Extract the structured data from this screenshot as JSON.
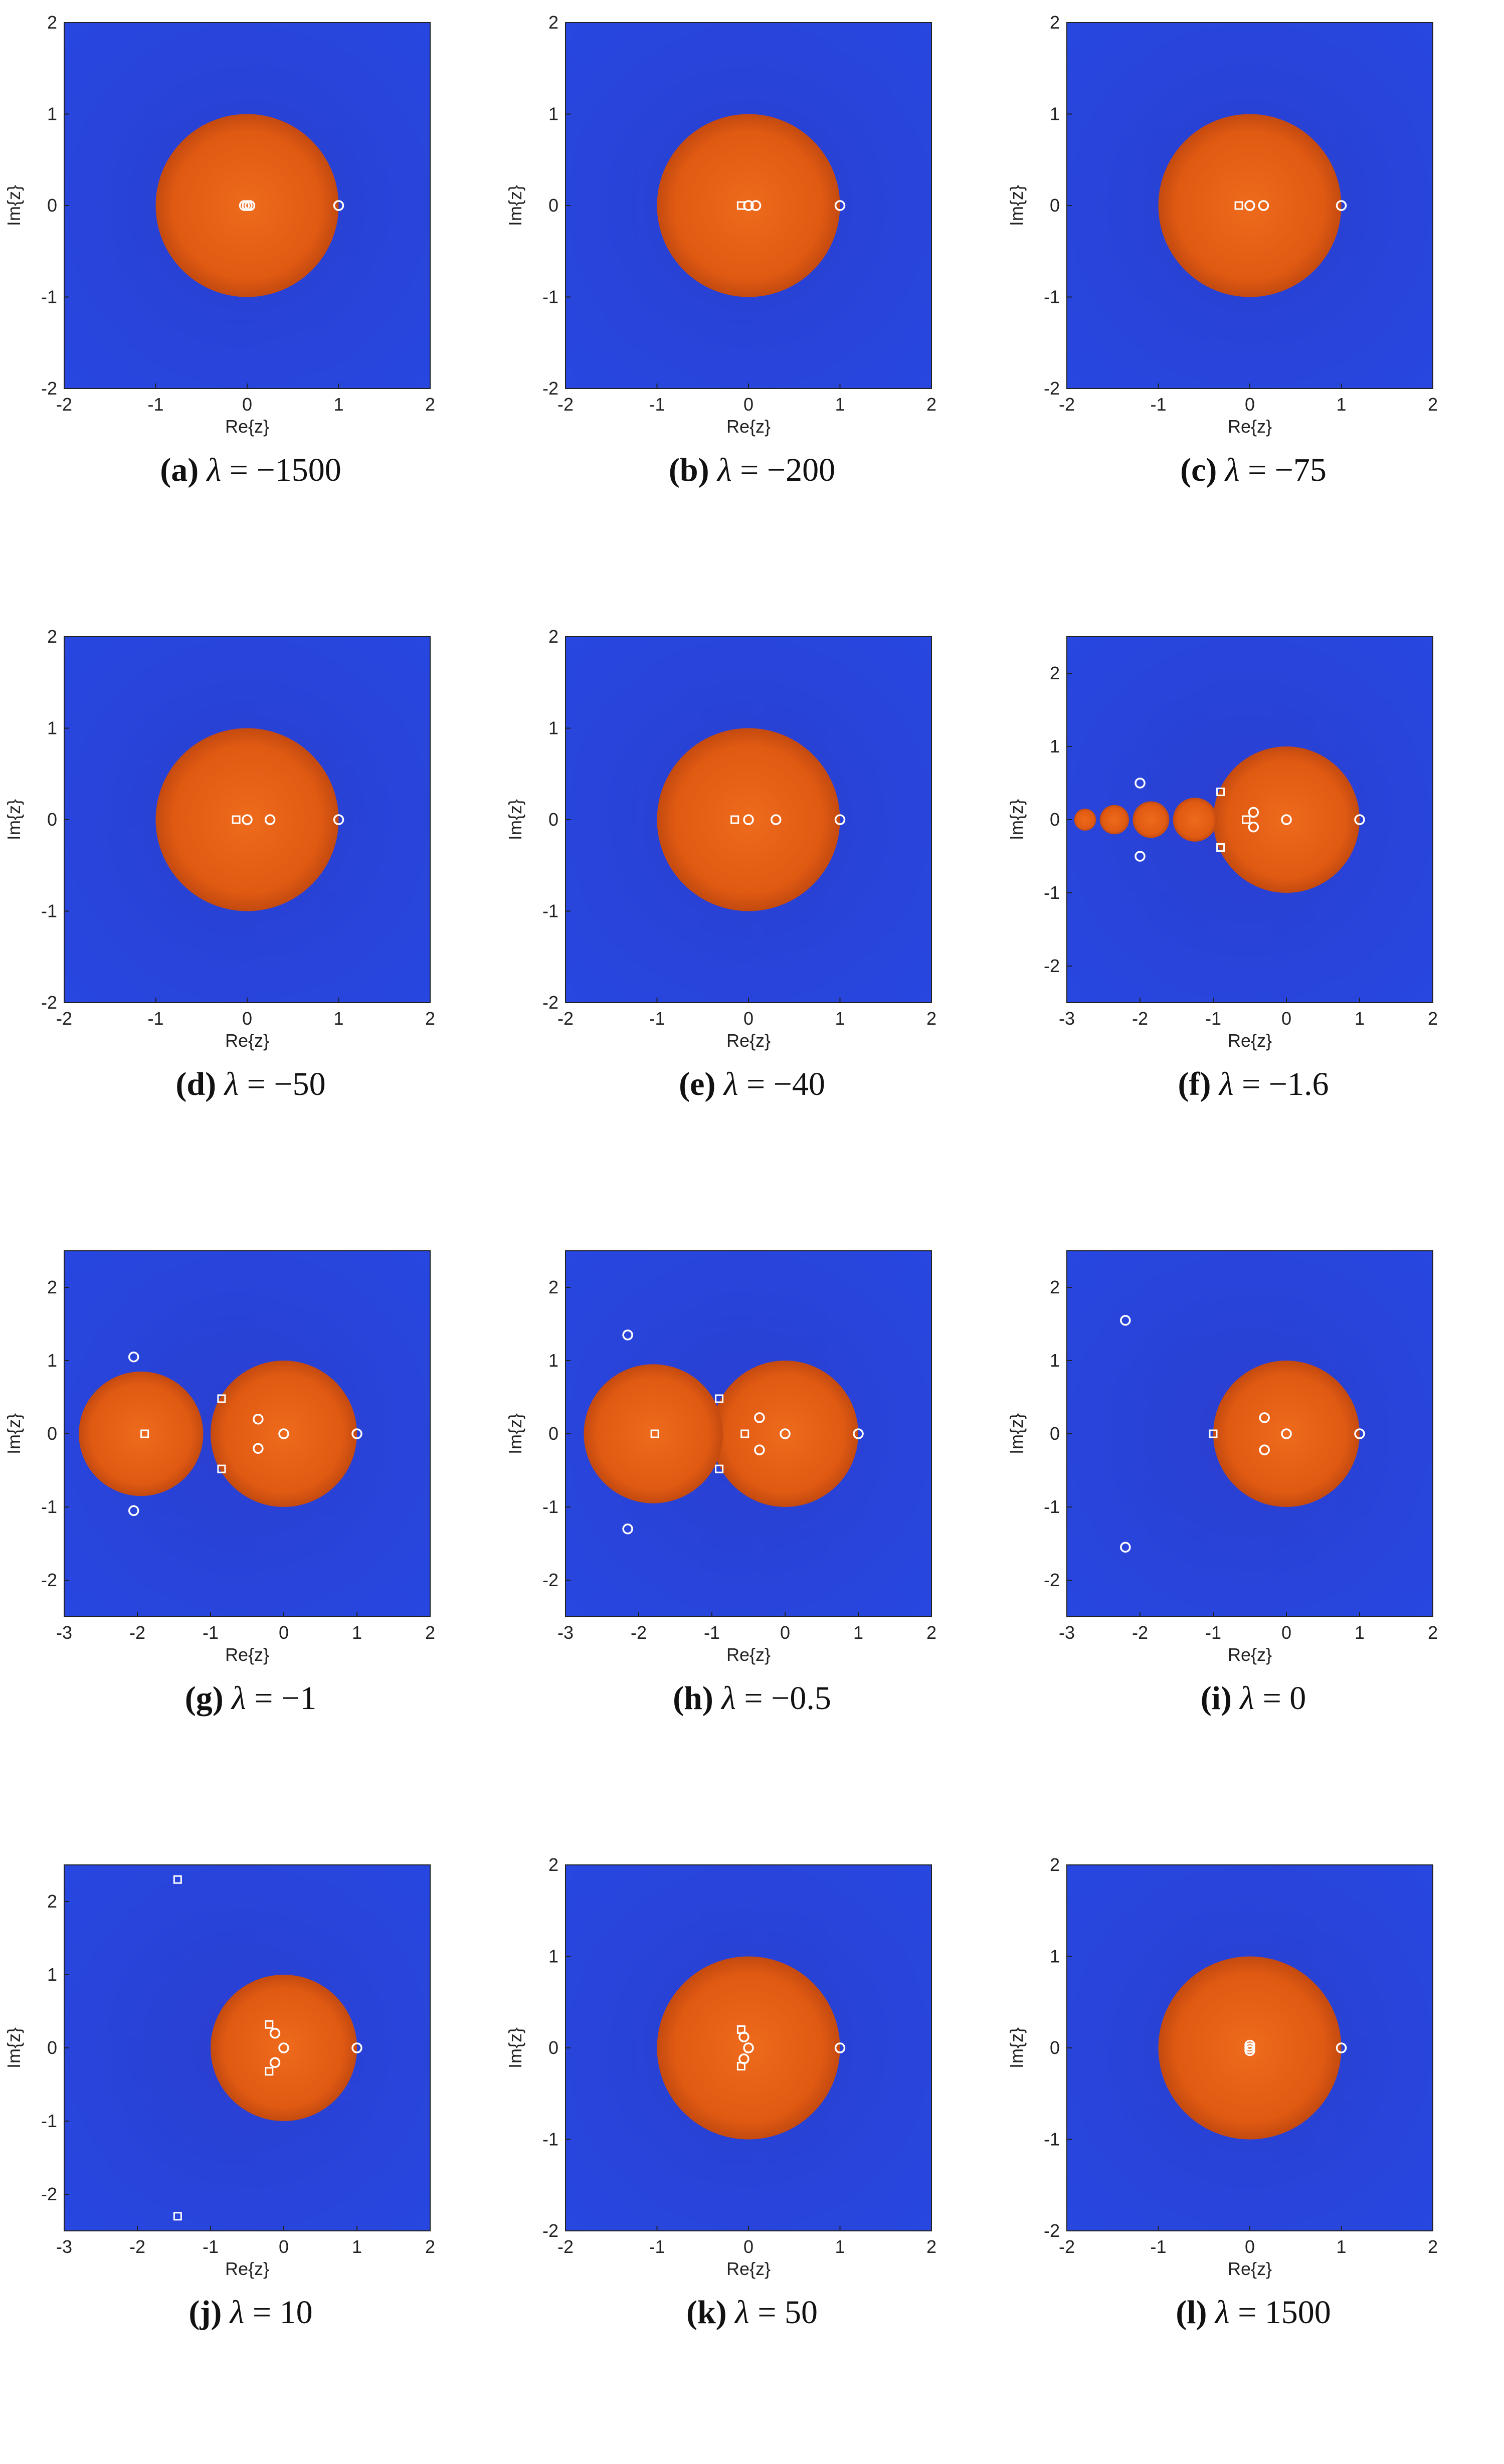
{
  "colors": {
    "basin_outside": "#2747e0",
    "basin_inside": "#e05a12",
    "axis": "#222222",
    "marker": "#ffffff"
  },
  "chart_data": [
    {
      "type": "heatmap",
      "panel": "a",
      "lambda": "−1500",
      "xlabel": "Re{z}",
      "ylabel": "Im{z}",
      "xlim": [
        -2,
        2
      ],
      "ylim": [
        -2,
        2
      ],
      "xticks": [
        "-2",
        "-1",
        "0",
        "1",
        "2"
      ],
      "yticks": [
        "-2",
        "-1",
        "0",
        "1",
        "2"
      ],
      "circles": [
        {
          "cx": 0,
          "cy": 0,
          "r": 1
        }
      ],
      "markers": [
        {
          "x": 0,
          "y": 0,
          "shape": "circle"
        },
        {
          "x": -0.03,
          "y": 0,
          "shape": "circle"
        },
        {
          "x": 0.03,
          "y": 0,
          "shape": "circle"
        },
        {
          "x": 1,
          "y": 0,
          "shape": "circle"
        }
      ]
    },
    {
      "type": "heatmap",
      "panel": "b",
      "lambda": "−200",
      "xlabel": "Re{z}",
      "ylabel": "Im{z}",
      "xlim": [
        -2,
        2
      ],
      "ylim": [
        -2,
        2
      ],
      "xticks": [
        "-2",
        "-1",
        "0",
        "1",
        "2"
      ],
      "yticks": [
        "-2",
        "-1",
        "0",
        "1",
        "2"
      ],
      "circles": [
        {
          "cx": 0,
          "cy": 0,
          "r": 1
        }
      ],
      "markers": [
        {
          "x": 0,
          "y": 0,
          "shape": "circle"
        },
        {
          "x": -0.08,
          "y": 0,
          "shape": "square"
        },
        {
          "x": 0.08,
          "y": 0,
          "shape": "circle"
        },
        {
          "x": 1,
          "y": 0,
          "shape": "circle"
        }
      ]
    },
    {
      "type": "heatmap",
      "panel": "c",
      "lambda": "−75",
      "xlabel": "Re{z}",
      "ylabel": "Im{z}",
      "xlim": [
        -2,
        2
      ],
      "ylim": [
        -2,
        2
      ],
      "xticks": [
        "-2",
        "-1",
        "0",
        "1",
        "2"
      ],
      "yticks": [
        "-2",
        "-1",
        "0",
        "1",
        "2"
      ],
      "circles": [
        {
          "cx": 0,
          "cy": 0,
          "r": 1
        }
      ],
      "markers": [
        {
          "x": 0,
          "y": 0,
          "shape": "circle"
        },
        {
          "x": -0.12,
          "y": 0,
          "shape": "square"
        },
        {
          "x": 0.15,
          "y": 0,
          "shape": "circle"
        },
        {
          "x": 1,
          "y": 0,
          "shape": "circle"
        }
      ]
    },
    {
      "type": "heatmap",
      "panel": "d",
      "lambda": "−50",
      "xlabel": "Re{z}",
      "ylabel": "Im{z}",
      "xlim": [
        -2,
        2
      ],
      "ylim": [
        -2,
        2
      ],
      "xticks": [
        "-2",
        "-1",
        "0",
        "1",
        "2"
      ],
      "yticks": [
        "-2",
        "-1",
        "0",
        "1",
        "2"
      ],
      "circles": [
        {
          "cx": 0,
          "cy": 0,
          "r": 1
        }
      ],
      "markers": [
        {
          "x": 0,
          "y": 0,
          "shape": "circle"
        },
        {
          "x": -0.12,
          "y": 0,
          "shape": "square"
        },
        {
          "x": 0.25,
          "y": 0,
          "shape": "circle"
        },
        {
          "x": 1,
          "y": 0,
          "shape": "circle"
        }
      ]
    },
    {
      "type": "heatmap",
      "panel": "e",
      "lambda": "−40",
      "xlabel": "Re{z}",
      "ylabel": "Im{z}",
      "xlim": [
        -2,
        2
      ],
      "ylim": [
        -2,
        2
      ],
      "xticks": [
        "-2",
        "-1",
        "0",
        "1",
        "2"
      ],
      "yticks": [
        "-2",
        "-1",
        "0",
        "1",
        "2"
      ],
      "circles": [
        {
          "cx": 0,
          "cy": 0,
          "r": 1
        }
      ],
      "markers": [
        {
          "x": 0,
          "y": 0,
          "shape": "circle"
        },
        {
          "x": -0.15,
          "y": 0,
          "shape": "square"
        },
        {
          "x": 0.3,
          "y": 0,
          "shape": "circle"
        },
        {
          "x": 1,
          "y": 0,
          "shape": "circle"
        }
      ]
    },
    {
      "type": "heatmap",
      "panel": "f",
      "lambda": "−1.6",
      "xlabel": "Re{z}",
      "ylabel": "Im{z}",
      "xlim": [
        -3,
        2
      ],
      "ylim": [
        -2.5,
        2.5
      ],
      "xticks": [
        "-3",
        "-2",
        "-1",
        "0",
        "1",
        "2"
      ],
      "yticks": [
        "-2",
        "-1",
        "0",
        "1",
        "2"
      ],
      "circles": [
        {
          "cx": 0,
          "cy": 0,
          "r": 1
        },
        {
          "cx": -1.25,
          "cy": 0,
          "r": 0.3
        },
        {
          "cx": -1.85,
          "cy": 0,
          "r": 0.25
        },
        {
          "cx": -2.35,
          "cy": 0,
          "r": 0.2
        },
        {
          "cx": -2.75,
          "cy": 0,
          "r": 0.15
        }
      ],
      "markers": [
        {
          "x": 0,
          "y": 0,
          "shape": "circle"
        },
        {
          "x": 1,
          "y": 0,
          "shape": "circle"
        },
        {
          "x": -0.45,
          "y": 0.1,
          "shape": "circle"
        },
        {
          "x": -0.45,
          "y": -0.1,
          "shape": "circle"
        },
        {
          "x": -2,
          "y": 0.5,
          "shape": "circle"
        },
        {
          "x": -2,
          "y": -0.5,
          "shape": "circle"
        },
        {
          "x": -0.9,
          "y": 0.38,
          "shape": "square"
        },
        {
          "x": -0.9,
          "y": -0.38,
          "shape": "square"
        },
        {
          "x": -0.55,
          "y": 0,
          "shape": "square"
        }
      ]
    },
    {
      "type": "heatmap",
      "panel": "g",
      "lambda": "−1",
      "xlabel": "Re{z}",
      "ylabel": "Im{z}",
      "xlim": [
        -3,
        2
      ],
      "ylim": [
        -2.5,
        2.5
      ],
      "xticks": [
        "-3",
        "-2",
        "-1",
        "0",
        "1",
        "2"
      ],
      "yticks": [
        "-2",
        "-1",
        "0",
        "1",
        "2"
      ],
      "circles": [
        {
          "cx": 0,
          "cy": 0,
          "r": 1
        },
        {
          "cx": -1.95,
          "cy": 0,
          "r": 0.85
        }
      ],
      "markers": [
        {
          "x": 0,
          "y": 0,
          "shape": "circle"
        },
        {
          "x": 1,
          "y": 0,
          "shape": "circle"
        },
        {
          "x": -0.35,
          "y": 0.2,
          "shape": "circle"
        },
        {
          "x": -0.35,
          "y": -0.2,
          "shape": "circle"
        },
        {
          "x": -2.05,
          "y": 1.05,
          "shape": "circle"
        },
        {
          "x": -2.05,
          "y": -1.05,
          "shape": "circle"
        },
        {
          "x": -0.85,
          "y": 0.48,
          "shape": "square"
        },
        {
          "x": -0.85,
          "y": -0.48,
          "shape": "square"
        },
        {
          "x": -1.9,
          "y": 0,
          "shape": "square"
        }
      ]
    },
    {
      "type": "heatmap",
      "panel": "h",
      "lambda": "−0.5",
      "xlabel": "Re{z}",
      "ylabel": "Im{z}",
      "xlim": [
        -3,
        2
      ],
      "ylim": [
        -2.5,
        2.5
      ],
      "xticks": [
        "-3",
        "-2",
        "-1",
        "0",
        "1",
        "2"
      ],
      "yticks": [
        "-2",
        "-1",
        "0",
        "1",
        "2"
      ],
      "circles": [
        {
          "cx": 0,
          "cy": 0,
          "r": 1
        },
        {
          "cx": -1.8,
          "cy": 0,
          "r": 0.95
        }
      ],
      "markers": [
        {
          "x": 0,
          "y": 0,
          "shape": "circle"
        },
        {
          "x": 1,
          "y": 0,
          "shape": "circle"
        },
        {
          "x": -0.35,
          "y": 0.22,
          "shape": "circle"
        },
        {
          "x": -0.35,
          "y": -0.22,
          "shape": "circle"
        },
        {
          "x": -2.15,
          "y": 1.35,
          "shape": "circle"
        },
        {
          "x": -2.15,
          "y": -1.3,
          "shape": "circle"
        },
        {
          "x": -0.9,
          "y": 0.48,
          "shape": "square"
        },
        {
          "x": -0.9,
          "y": -0.48,
          "shape": "square"
        },
        {
          "x": -1.78,
          "y": 0,
          "shape": "square"
        },
        {
          "x": -0.55,
          "y": 0,
          "shape": "square"
        }
      ]
    },
    {
      "type": "heatmap",
      "panel": "i",
      "lambda": "0",
      "xlabel": "Re{z}",
      "ylabel": "Im{z}",
      "xlim": [
        -3,
        2
      ],
      "ylim": [
        -2.5,
        2.5
      ],
      "xticks": [
        "-3",
        "-2",
        "-1",
        "0",
        "1",
        "2"
      ],
      "yticks": [
        "-2",
        "-1",
        "0",
        "1",
        "2"
      ],
      "circles": [
        {
          "cx": 0,
          "cy": 0,
          "r": 1
        }
      ],
      "markers": [
        {
          "x": 0,
          "y": 0,
          "shape": "circle"
        },
        {
          "x": 1,
          "y": 0,
          "shape": "circle"
        },
        {
          "x": -0.3,
          "y": 0.22,
          "shape": "circle"
        },
        {
          "x": -0.3,
          "y": -0.22,
          "shape": "circle"
        },
        {
          "x": -2.2,
          "y": 1.55,
          "shape": "circle"
        },
        {
          "x": -2.2,
          "y": -1.55,
          "shape": "circle"
        },
        {
          "x": -1,
          "y": 0,
          "shape": "square"
        }
      ]
    },
    {
      "type": "heatmap",
      "panel": "j",
      "lambda": "10",
      "xlabel": "Re{z}",
      "ylabel": "Im{z}",
      "xlim": [
        -3,
        2
      ],
      "ylim": [
        -2.5,
        2.5
      ],
      "xticks": [
        "-3",
        "-2",
        "-1",
        "0",
        "1",
        "2"
      ],
      "yticks": [
        "-2",
        "-1",
        "0",
        "1",
        "2"
      ],
      "circles": [
        {
          "cx": 0,
          "cy": 0,
          "r": 1
        }
      ],
      "markers": [
        {
          "x": 0,
          "y": 0,
          "shape": "circle"
        },
        {
          "x": 1,
          "y": 0,
          "shape": "circle"
        },
        {
          "x": -0.12,
          "y": 0.2,
          "shape": "circle"
        },
        {
          "x": -0.12,
          "y": -0.2,
          "shape": "circle"
        },
        {
          "x": -0.2,
          "y": 0.32,
          "shape": "square"
        },
        {
          "x": -0.2,
          "y": -0.32,
          "shape": "square"
        },
        {
          "x": -1.45,
          "y": 2.3,
          "shape": "square"
        },
        {
          "x": -1.45,
          "y": -2.3,
          "shape": "square"
        }
      ]
    },
    {
      "type": "heatmap",
      "panel": "k",
      "lambda": "50",
      "xlabel": "Re{z}",
      "ylabel": "Im{z}",
      "xlim": [
        -2,
        2
      ],
      "ylim": [
        -2,
        2
      ],
      "xticks": [
        "-2",
        "-1",
        "0",
        "1",
        "2"
      ],
      "yticks": [
        "-2",
        "-1",
        "0",
        "1",
        "2"
      ],
      "circles": [
        {
          "cx": 0,
          "cy": 0,
          "r": 1
        }
      ],
      "markers": [
        {
          "x": 0,
          "y": 0,
          "shape": "circle"
        },
        {
          "x": 1,
          "y": 0,
          "shape": "circle"
        },
        {
          "x": -0.05,
          "y": 0.12,
          "shape": "circle"
        },
        {
          "x": -0.05,
          "y": -0.12,
          "shape": "circle"
        },
        {
          "x": -0.08,
          "y": 0.2,
          "shape": "square"
        },
        {
          "x": -0.08,
          "y": -0.2,
          "shape": "square"
        }
      ]
    },
    {
      "type": "heatmap",
      "panel": "l",
      "lambda": "1500",
      "xlabel": "Re{z}",
      "ylabel": "Im{z}",
      "xlim": [
        -2,
        2
      ],
      "ylim": [
        -2,
        2
      ],
      "xticks": [
        "-2",
        "-1",
        "0",
        "1",
        "2"
      ],
      "yticks": [
        "-2",
        "-1",
        "0",
        "1",
        "2"
      ],
      "circles": [
        {
          "cx": 0,
          "cy": 0,
          "r": 1
        }
      ],
      "markers": [
        {
          "x": 0,
          "y": 0.03,
          "shape": "circle"
        },
        {
          "x": 0,
          "y": -0.03,
          "shape": "circle"
        },
        {
          "x": 0,
          "y": 0,
          "shape": "circle"
        },
        {
          "x": 1,
          "y": 0,
          "shape": "circle"
        }
      ]
    }
  ]
}
